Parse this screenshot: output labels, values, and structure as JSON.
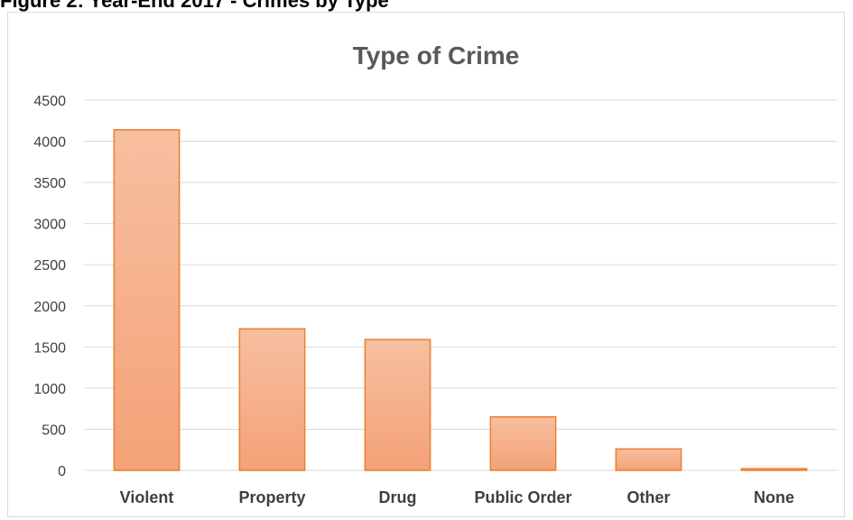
{
  "figure": {
    "caption": "Figure 2: Year-End 2017 - Crimes by Type"
  },
  "chart_data": {
    "type": "bar",
    "title": "Type of Crime",
    "xlabel": "",
    "ylabel": "",
    "categories": [
      "Violent",
      "Property",
      "Drug",
      "Public Order",
      "Other",
      "None"
    ],
    "values": [
      4140,
      1720,
      1590,
      650,
      260,
      20
    ],
    "ylim": [
      0,
      4500
    ],
    "yticks": [
      0,
      500,
      1000,
      1500,
      2000,
      2500,
      3000,
      3500,
      4000,
      4500
    ],
    "grid": true,
    "legend": "none",
    "colors": {
      "bar_fill_top": "#f7bfa0",
      "bar_fill_bottom": "#f4a277",
      "bar_stroke": "#ed7d31",
      "gridline": "#d9d9d9",
      "title": "#595959",
      "label": "#404040"
    }
  }
}
